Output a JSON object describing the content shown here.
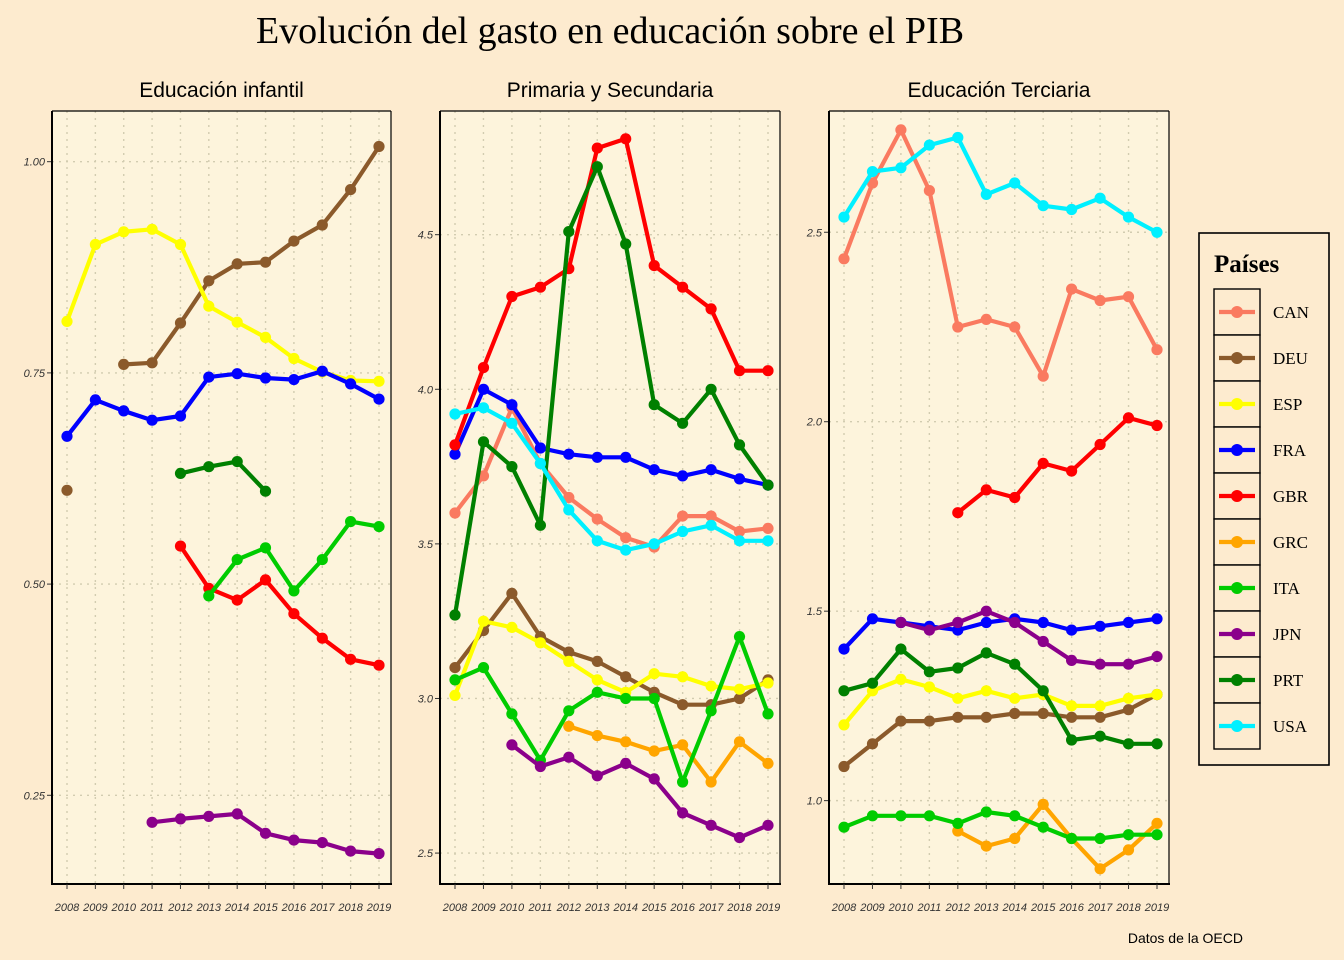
{
  "title": "Evolución del gasto en educación sobre el PIB",
  "caption": "Datos de la OECD",
  "colors": {
    "background": "#fdebcf",
    "panel": "#fdf4dc",
    "grid": "#d2ccb0",
    "CAN": "#fa7a60",
    "DEU": "#8b5a2b",
    "ESP": "#ffff00",
    "FRA": "#0000ff",
    "GBR": "#ff0000",
    "GRC": "#ffa500",
    "ITA": "#00cc00",
    "JPN": "#8b008b",
    "PRT": "#008000",
    "USA": "#00f0ff"
  },
  "legend": {
    "title": "Países",
    "position": "right",
    "items": [
      "CAN",
      "DEU",
      "ESP",
      "FRA",
      "GBR",
      "GRC",
      "ITA",
      "JPN",
      "PRT",
      "USA"
    ]
  },
  "chart_data": [
    {
      "type": "line",
      "title": "Educación infantil",
      "x": [
        2008,
        2009,
        2010,
        2011,
        2012,
        2013,
        2014,
        2015,
        2016,
        2017,
        2018,
        2019
      ],
      "xticks": [
        "2008",
        "2009",
        "2010",
        "2011",
        "2012",
        "2013",
        "2014",
        "2015",
        "2016",
        "2017",
        "2018",
        "2019"
      ],
      "ylim": [
        0.145,
        1.06
      ],
      "yticks": [
        0.25,
        0.5,
        0.75,
        1.0
      ],
      "yticklabels": [
        "0.25",
        "0.50",
        "0.75",
        "1.00"
      ],
      "grid": true,
      "series": [
        {
          "name": "DEU",
          "values": [
            0.611,
            null,
            0.76,
            0.762,
            0.809,
            0.859,
            0.879,
            0.881,
            0.906,
            0.925,
            0.967,
            1.018
          ]
        },
        {
          "name": "ESP",
          "values": [
            0.811,
            0.902,
            0.917,
            0.92,
            0.902,
            0.829,
            0.81,
            0.792,
            0.767,
            0.751,
            0.741,
            0.74
          ]
        },
        {
          "name": "FRA",
          "values": [
            0.675,
            0.718,
            0.705,
            0.694,
            0.699,
            0.745,
            0.749,
            0.744,
            0.742,
            0.752,
            0.737,
            0.719
          ]
        },
        {
          "name": "PRT",
          "values": [
            null,
            null,
            null,
            null,
            0.631,
            0.639,
            0.645,
            0.61,
            null,
            null,
            null,
            null
          ]
        },
        {
          "name": "GBR",
          "values": [
            null,
            null,
            null,
            null,
            0.545,
            0.495,
            0.481,
            0.505,
            0.465,
            0.436,
            0.411,
            0.404
          ]
        },
        {
          "name": "ITA",
          "values": [
            null,
            null,
            null,
            null,
            null,
            0.486,
            0.529,
            0.543,
            0.492,
            0.529,
            0.574,
            0.568
          ]
        },
        {
          "name": "JPN",
          "values": [
            null,
            null,
            null,
            0.218,
            0.222,
            0.225,
            0.228,
            0.205,
            0.197,
            0.194,
            0.184,
            0.181
          ]
        }
      ]
    },
    {
      "type": "line",
      "title": "Primaria y Secundaria",
      "x": [
        2008,
        2009,
        2010,
        2011,
        2012,
        2013,
        2014,
        2015,
        2016,
        2017,
        2018,
        2019
      ],
      "xticks": [
        "2008",
        "2009",
        "2010",
        "2011",
        "2012",
        "2013",
        "2014",
        "2015",
        "2016",
        "2017",
        "2018",
        "2019"
      ],
      "ylim": [
        2.4,
        4.9
      ],
      "yticks": [
        2.5,
        3.0,
        3.5,
        4.0,
        4.5
      ],
      "yticklabels": [
        "2.5",
        "3.0",
        "3.5",
        "4.0",
        "4.5"
      ],
      "grid": true,
      "series": [
        {
          "name": "CAN",
          "values": [
            3.6,
            3.72,
            3.94,
            3.76,
            3.65,
            3.58,
            3.52,
            3.49,
            3.59,
            3.59,
            3.54,
            3.55
          ]
        },
        {
          "name": "DEU",
          "values": [
            3.1,
            3.22,
            3.34,
            3.2,
            3.15,
            3.12,
            3.07,
            3.02,
            2.98,
            2.98,
            3.0,
            3.06
          ]
        },
        {
          "name": "ESP",
          "values": [
            3.01,
            3.25,
            3.23,
            3.18,
            3.12,
            3.06,
            3.02,
            3.08,
            3.07,
            3.04,
            3.03,
            3.05
          ]
        },
        {
          "name": "FRA",
          "values": [
            3.79,
            4.0,
            3.95,
            3.81,
            3.79,
            3.78,
            3.78,
            3.74,
            3.72,
            3.74,
            3.71,
            3.69
          ]
        },
        {
          "name": "GBR",
          "values": [
            3.82,
            4.07,
            4.3,
            4.33,
            4.39,
            4.78,
            4.81,
            4.4,
            4.33,
            4.26,
            4.06,
            4.06
          ]
        },
        {
          "name": "GRC",
          "values": [
            null,
            null,
            null,
            null,
            2.91,
            2.88,
            2.86,
            2.83,
            2.85,
            2.73,
            2.86,
            2.79
          ]
        },
        {
          "name": "ITA",
          "values": [
            3.06,
            3.1,
            2.95,
            2.8,
            2.96,
            3.02,
            3.0,
            3.0,
            2.73,
            2.96,
            3.2,
            2.95
          ]
        },
        {
          "name": "JPN",
          "values": [
            null,
            null,
            2.85,
            2.78,
            2.81,
            2.75,
            2.79,
            2.74,
            2.63,
            2.59,
            2.55,
            2.59
          ]
        },
        {
          "name": "PRT",
          "values": [
            3.27,
            3.83,
            3.75,
            3.56,
            4.51,
            4.72,
            4.47,
            3.95,
            3.89,
            4.0,
            3.82,
            3.69
          ]
        },
        {
          "name": "USA",
          "values": [
            3.92,
            3.94,
            3.89,
            3.76,
            3.61,
            3.51,
            3.48,
            3.5,
            3.54,
            3.56,
            3.51,
            3.51
          ]
        }
      ]
    },
    {
      "type": "line",
      "title": "Educación Terciaria",
      "x": [
        2008,
        2009,
        2010,
        2011,
        2012,
        2013,
        2014,
        2015,
        2016,
        2017,
        2018,
        2019
      ],
      "xticks": [
        "2008",
        "2009",
        "2010",
        "2011",
        "2012",
        "2013",
        "2014",
        "2015",
        "2016",
        "2017",
        "2018",
        "2019"
      ],
      "ylim": [
        0.78,
        2.82
      ],
      "yticks": [
        1.0,
        1.5,
        2.0,
        2.5
      ],
      "yticklabels": [
        "1.0",
        "1.5",
        "2.0",
        "2.5"
      ],
      "grid": true,
      "series": [
        {
          "name": "CAN",
          "values": [
            2.43,
            2.63,
            2.77,
            2.61,
            2.25,
            2.27,
            2.25,
            2.12,
            2.35,
            2.32,
            2.33,
            2.19
          ]
        },
        {
          "name": "DEU",
          "values": [
            1.09,
            1.15,
            1.21,
            1.21,
            1.22,
            1.22,
            1.23,
            1.23,
            1.22,
            1.22,
            1.24,
            1.28
          ]
        },
        {
          "name": "ESP",
          "values": [
            1.2,
            1.29,
            1.32,
            1.3,
            1.27,
            1.29,
            1.27,
            1.28,
            1.25,
            1.25,
            1.27,
            1.28
          ]
        },
        {
          "name": "FRA",
          "values": [
            1.4,
            1.48,
            1.47,
            1.46,
            1.45,
            1.47,
            1.48,
            1.47,
            1.45,
            1.46,
            1.47,
            1.48
          ]
        },
        {
          "name": "GBR",
          "values": [
            null,
            null,
            null,
            null,
            1.76,
            1.82,
            1.8,
            1.89,
            1.87,
            1.94,
            2.01,
            1.99
          ]
        },
        {
          "name": "GRC",
          "values": [
            null,
            null,
            null,
            null,
            0.92,
            0.88,
            0.9,
            0.99,
            0.9,
            0.82,
            0.87,
            0.94
          ]
        },
        {
          "name": "ITA",
          "values": [
            0.93,
            0.96,
            0.96,
            0.96,
            0.94,
            0.97,
            0.96,
            0.93,
            0.9,
            0.9,
            0.91,
            0.91
          ]
        },
        {
          "name": "JPN",
          "values": [
            null,
            null,
            1.47,
            1.45,
            1.47,
            1.5,
            1.47,
            1.42,
            1.37,
            1.36,
            1.36,
            1.38
          ]
        },
        {
          "name": "PRT",
          "values": [
            1.29,
            1.31,
            1.4,
            1.34,
            1.35,
            1.39,
            1.36,
            1.29,
            1.16,
            1.17,
            1.15,
            1.15
          ]
        },
        {
          "name": "USA",
          "values": [
            2.54,
            2.66,
            2.67,
            2.73,
            2.75,
            2.6,
            2.63,
            2.57,
            2.56,
            2.59,
            2.54,
            2.5
          ]
        }
      ]
    }
  ]
}
